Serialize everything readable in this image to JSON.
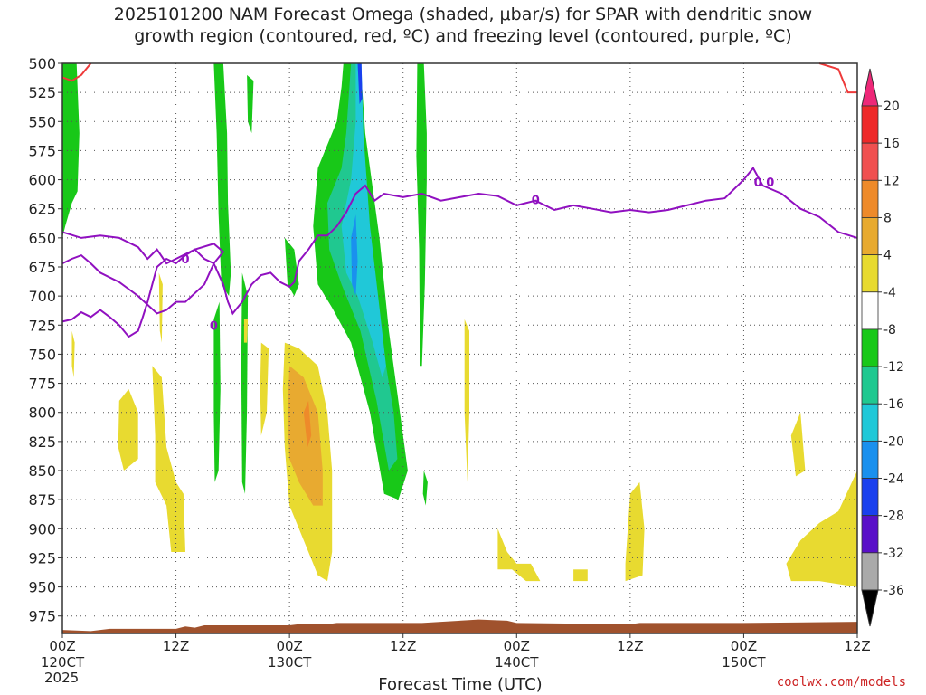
{
  "chart_data": {
    "type": "heatmap",
    "title_line1": "2025101200 NAM Forecast Omega (shaded, μbar/s) for SPAR with dendritic snow",
    "title_line2": "growth region (contoured, red, ºC) and freezing level (contoured, purple, ºC)",
    "xlabel": "Forecast Time (UTC)",
    "y_ticks": [
      500,
      525,
      550,
      575,
      600,
      625,
      650,
      675,
      700,
      725,
      750,
      775,
      800,
      825,
      850,
      875,
      900,
      925,
      950,
      975
    ],
    "ylim": [
      500,
      990
    ],
    "x_ticks": [
      {
        "hour": 0,
        "label": "00Z",
        "date": "120CT",
        "year": "2025"
      },
      {
        "hour": 12,
        "label": "12Z",
        "date": "",
        "year": ""
      },
      {
        "hour": 24,
        "label": "00Z",
        "date": "130CT",
        "year": ""
      },
      {
        "hour": 36,
        "label": "12Z",
        "date": "",
        "year": ""
      },
      {
        "hour": 48,
        "label": "00Z",
        "date": "140CT",
        "year": ""
      },
      {
        "hour": 60,
        "label": "12Z",
        "date": "",
        "year": ""
      },
      {
        "hour": 72,
        "label": "00Z",
        "date": "150CT",
        "year": ""
      },
      {
        "hour": 84,
        "label": "12Z",
        "date": "",
        "year": ""
      }
    ],
    "xlim": [
      0,
      84
    ],
    "grid": true,
    "colorbar": {
      "levels": [
        20,
        16,
        12,
        8,
        4,
        -4,
        -8,
        -12,
        -16,
        -20,
        -24,
        -28,
        -32,
        -36
      ],
      "colors": [
        "#ee2828",
        "#f05050",
        "#ee8a2a",
        "#e8aa30",
        "#e8da30",
        "#ffffff",
        "#18c818",
        "#20c890",
        "#20c8d8",
        "#1a90ee",
        "#1a40ee",
        "#5a10c8",
        "#9a10c8",
        "#aaaaaa",
        "#000000"
      ],
      "top_arrow_color": "#ee2878",
      "bottom_arrow_color": "#000000"
    },
    "freezing_level": {
      "label": "0",
      "color": "#9010c0",
      "points": [
        [
          0,
          645
        ],
        [
          2,
          650
        ],
        [
          4,
          648
        ],
        [
          6,
          650
        ],
        [
          8,
          658
        ],
        [
          9,
          668
        ],
        [
          10,
          660
        ],
        [
          11,
          672
        ],
        [
          12,
          668
        ],
        [
          14,
          660
        ],
        [
          16,
          655
        ],
        [
          17,
          662
        ],
        [
          16,
          672
        ],
        [
          15,
          690
        ],
        [
          13,
          705
        ],
        [
          12,
          705
        ],
        [
          11,
          712
        ],
        [
          10,
          715
        ],
        [
          8,
          700
        ],
        [
          6,
          688
        ],
        [
          4,
          680
        ],
        [
          3,
          672
        ],
        [
          2,
          665
        ],
        [
          1,
          668
        ],
        [
          0,
          672
        ]
      ],
      "points2": [
        [
          0,
          722
        ],
        [
          1,
          720
        ],
        [
          2,
          714
        ],
        [
          3,
          718
        ],
        [
          4,
          712
        ],
        [
          5,
          718
        ],
        [
          6,
          725
        ],
        [
          7,
          735
        ],
        [
          8,
          730
        ],
        [
          8.5,
          718
        ],
        [
          9,
          705
        ],
        [
          9.5,
          690
        ],
        [
          10,
          675
        ],
        [
          11,
          668
        ],
        [
          12,
          672
        ],
        [
          13,
          665
        ],
        [
          14,
          660
        ],
        [
          15,
          668
        ],
        [
          16,
          672
        ],
        [
          17,
          690
        ],
        [
          17.5,
          705
        ],
        [
          18,
          715
        ],
        [
          19,
          705
        ],
        [
          20,
          690
        ],
        [
          21,
          682
        ],
        [
          22,
          680
        ],
        [
          23,
          688
        ],
        [
          24,
          692
        ],
        [
          24.5,
          688
        ],
        [
          25,
          670
        ],
        [
          26,
          660
        ],
        [
          27,
          648
        ],
        [
          28,
          648
        ],
        [
          29,
          640
        ],
        [
          30,
          628
        ],
        [
          31,
          612
        ],
        [
          32,
          605
        ],
        [
          33,
          618
        ],
        [
          34,
          612
        ],
        [
          36,
          615
        ],
        [
          38,
          612
        ],
        [
          40,
          618
        ],
        [
          42,
          615
        ],
        [
          44,
          612
        ],
        [
          46,
          614
        ],
        [
          48,
          622
        ],
        [
          50,
          618
        ],
        [
          52,
          626
        ],
        [
          54,
          622
        ],
        [
          56,
          625
        ],
        [
          58,
          628
        ],
        [
          60,
          626
        ],
        [
          62,
          628
        ],
        [
          64,
          626
        ],
        [
          66,
          622
        ],
        [
          68,
          618
        ],
        [
          70,
          616
        ],
        [
          72,
          600
        ],
        [
          73,
          590
        ],
        [
          74,
          605
        ],
        [
          76,
          612
        ],
        [
          78,
          625
        ],
        [
          80,
          632
        ],
        [
          82,
          645
        ],
        [
          84,
          650
        ]
      ]
    },
    "dgz_contour": {
      "color": "#ee3a3a",
      "left": [
        [
          0,
          512
        ],
        [
          1,
          515
        ],
        [
          2,
          510
        ],
        [
          3,
          500
        ]
      ],
      "right": [
        [
          80,
          500
        ],
        [
          82,
          505
        ],
        [
          83,
          525
        ],
        [
          84,
          525
        ]
      ]
    },
    "ground": {
      "color": "#a0522d",
      "top_pressure": 975
    }
  },
  "credit": "coolwx.com/models"
}
